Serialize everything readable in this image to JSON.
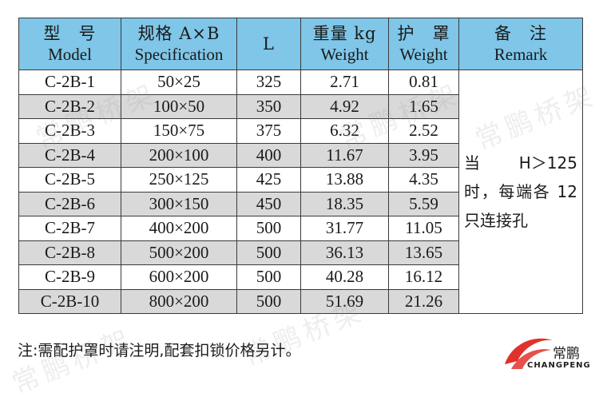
{
  "columns": [
    {
      "cn": "型　号",
      "en": "Model"
    },
    {
      "cn": "规格 A×B",
      "en": "Specification"
    },
    {
      "cn": "L",
      "en": ""
    },
    {
      "cn": "重量 kg",
      "en": "Weight"
    },
    {
      "cn": "护　罩",
      "en": "Weight"
    },
    {
      "cn": "备　注",
      "en": "Remark"
    }
  ],
  "rows": [
    {
      "model": "C-2B-1",
      "spec": "50×25",
      "l": "325",
      "weight": "2.71",
      "cover": "0.81"
    },
    {
      "model": "C-2B-2",
      "spec": "100×50",
      "l": "350",
      "weight": "4.92",
      "cover": "1.65"
    },
    {
      "model": "C-2B-3",
      "spec": "150×75",
      "l": "375",
      "weight": "6.32",
      "cover": "2.52"
    },
    {
      "model": "C-2B-4",
      "spec": "200×100",
      "l": "400",
      "weight": "11.67",
      "cover": "3.95"
    },
    {
      "model": "C-2B-5",
      "spec": "250×125",
      "l": "425",
      "weight": "13.88",
      "cover": "4.35"
    },
    {
      "model": "C-2B-6",
      "spec": "300×150",
      "l": "450",
      "weight": "18.35",
      "cover": "5.59"
    },
    {
      "model": "C-2B-7",
      "spec": "400×200",
      "l": "500",
      "weight": "31.77",
      "cover": "11.05"
    },
    {
      "model": "C-2B-8",
      "spec": "500×200",
      "l": "500",
      "weight": "36.13",
      "cover": "13.65"
    },
    {
      "model": "C-2B-9",
      "spec": "600×200",
      "l": "500",
      "weight": "40.28",
      "cover": "16.12"
    },
    {
      "model": "C-2B-10",
      "spec": "800×200",
      "l": "500",
      "weight": "51.69",
      "cover": "21.26"
    }
  ],
  "remark": "当 H＞125 时，每端各 12 只连接孔",
  "footnote": "注:需配护罩时请注明,配套扣锁价格另计。",
  "watermark": "常鹏桥架",
  "logo": {
    "cn": "常鹏",
    "en": "CHANGPENG"
  },
  "colors": {
    "header": "#7fc6e8",
    "shade": "#d9d9d9",
    "logo_red": "#e0322b"
  }
}
